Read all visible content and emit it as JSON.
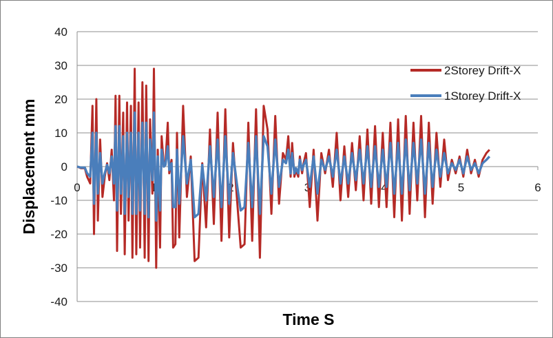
{
  "chart_data": {
    "type": "line",
    "title": "",
    "xlabel": "Time  S",
    "ylabel": "Displacement  mm",
    "xlim": [
      0,
      6
    ],
    "ylim": [
      -40,
      40
    ],
    "xticks": [
      0,
      1,
      2,
      3,
      4,
      5,
      6
    ],
    "yticks": [
      40,
      30,
      20,
      10,
      0,
      -10,
      -20,
      -30,
      -40
    ],
    "grid": "horizontal",
    "legend": "right",
    "series": [
      {
        "name": "2Storey Drift-X",
        "color": "#b52a26",
        "x": [
          0,
          0.05,
          0.1,
          0.13,
          0.17,
          0.2,
          0.22,
          0.25,
          0.27,
          0.3,
          0.33,
          0.36,
          0.39,
          0.42,
          0.45,
          0.48,
          0.5,
          0.52,
          0.55,
          0.57,
          0.6,
          0.62,
          0.65,
          0.67,
          0.7,
          0.72,
          0.75,
          0.77,
          0.8,
          0.82,
          0.85,
          0.88,
          0.9,
          0.93,
          0.95,
          0.98,
          1.0,
          1.03,
          1.05,
          1.08,
          1.1,
          1.13,
          1.15,
          1.18,
          1.2,
          1.23,
          1.25,
          1.28,
          1.3,
          1.33,
          1.38,
          1.43,
          1.48,
          1.53,
          1.58,
          1.63,
          1.68,
          1.73,
          1.78,
          1.83,
          1.88,
          1.93,
          1.98,
          2.03,
          2.08,
          2.13,
          2.18,
          2.23,
          2.28,
          2.33,
          2.38,
          2.43,
          2.48,
          2.53,
          2.58,
          2.63,
          2.68,
          2.72,
          2.75,
          2.78,
          2.8,
          2.83,
          2.85,
          2.88,
          2.9,
          2.93,
          2.95,
          2.98,
          3.03,
          3.08,
          3.13,
          3.18,
          3.23,
          3.28,
          3.33,
          3.38,
          3.43,
          3.48,
          3.53,
          3.58,
          3.63,
          3.68,
          3.73,
          3.78,
          3.83,
          3.88,
          3.93,
          3.98,
          4.03,
          4.08,
          4.13,
          4.18,
          4.23,
          4.28,
          4.33,
          4.38,
          4.43,
          4.48,
          4.53,
          4.58,
          4.63,
          4.68,
          4.73,
          4.78,
          4.83,
          4.88,
          4.93,
          4.98,
          5.03,
          5.08,
          5.13,
          5.18,
          5.23,
          5.28,
          5.33,
          5.37
        ],
        "y": [
          0,
          -0.5,
          -0.5,
          -3,
          -5,
          18,
          -20,
          20,
          -16,
          8,
          -9,
          -3,
          1,
          -4,
          5,
          -10,
          21,
          -25,
          21,
          -14,
          16,
          -26,
          19,
          -16,
          18,
          -27,
          29,
          -26,
          19,
          -24,
          25,
          -27,
          24,
          -28,
          14,
          -8,
          29,
          -30,
          5,
          -24,
          9,
          0,
          1,
          13,
          -2,
          2,
          -24,
          -23,
          10,
          -21,
          18,
          -9,
          3,
          -28,
          -27,
          1,
          -18,
          11,
          -17,
          16,
          -22,
          17,
          -21,
          7,
          -9,
          -24,
          -23,
          13,
          -22,
          17,
          -27,
          18,
          11,
          -14,
          15,
          -11,
          4,
          2,
          9,
          -3,
          7,
          -3,
          -1,
          -3,
          3,
          -2,
          1,
          4,
          -12,
          5,
          -16,
          4,
          -2,
          5,
          -6,
          10,
          -10,
          6,
          -9,
          7,
          -7,
          9,
          -10,
          11,
          -11,
          12,
          -12,
          10,
          -12,
          13,
          -15,
          14,
          -16,
          15,
          -14,
          13,
          -10,
          15,
          -15,
          13,
          -11,
          10,
          -6,
          8,
          -4,
          2,
          -2,
          3,
          -3,
          5,
          -2,
          2,
          -3,
          2,
          4,
          5
        ]
      },
      {
        "name": "1Storey Drift-X",
        "color": "#4a7ebb",
        "x": [
          0,
          0.05,
          0.1,
          0.13,
          0.17,
          0.2,
          0.22,
          0.25,
          0.27,
          0.3,
          0.33,
          0.36,
          0.39,
          0.42,
          0.45,
          0.48,
          0.5,
          0.52,
          0.55,
          0.57,
          0.6,
          0.62,
          0.65,
          0.67,
          0.7,
          0.72,
          0.75,
          0.77,
          0.8,
          0.82,
          0.85,
          0.88,
          0.9,
          0.93,
          0.95,
          0.98,
          1.0,
          1.03,
          1.05,
          1.08,
          1.1,
          1.13,
          1.15,
          1.18,
          1.2,
          1.23,
          1.25,
          1.28,
          1.3,
          1.33,
          1.38,
          1.43,
          1.48,
          1.53,
          1.58,
          1.63,
          1.68,
          1.73,
          1.78,
          1.83,
          1.88,
          1.93,
          1.98,
          2.03,
          2.08,
          2.13,
          2.18,
          2.23,
          2.28,
          2.33,
          2.38,
          2.43,
          2.48,
          2.53,
          2.58,
          2.63,
          2.68,
          2.72,
          2.75,
          2.78,
          2.8,
          2.83,
          2.85,
          2.88,
          2.9,
          2.93,
          2.95,
          2.98,
          3.03,
          3.08,
          3.13,
          3.18,
          3.23,
          3.28,
          3.33,
          3.38,
          3.43,
          3.48,
          3.53,
          3.58,
          3.63,
          3.68,
          3.73,
          3.78,
          3.83,
          3.88,
          3.93,
          3.98,
          4.03,
          4.08,
          4.13,
          4.18,
          4.23,
          4.28,
          4.33,
          4.38,
          4.43,
          4.48,
          4.53,
          4.58,
          4.63,
          4.68,
          4.73,
          4.78,
          4.83,
          4.88,
          4.93,
          4.98,
          5.03,
          5.08,
          5.13,
          5.18,
          5.23,
          5.28,
          5.33,
          5.37
        ],
        "y": [
          0,
          -0.3,
          -0.3,
          -2,
          -3,
          10,
          -11,
          10,
          -8,
          4,
          -5,
          -2,
          0.5,
          -2,
          3,
          -5,
          12,
          -13,
          12,
          -8,
          9,
          -14,
          10,
          -9,
          10,
          -14,
          16,
          -14,
          10,
          -13,
          13,
          -14,
          13,
          -15,
          8,
          -4,
          16,
          -16,
          3,
          -13,
          5,
          0,
          0.5,
          6,
          -1,
          1,
          -12,
          -12,
          5,
          -11,
          9,
          -5,
          2,
          -15,
          -14,
          0.5,
          -10,
          6,
          -9,
          8,
          -12,
          9,
          -11,
          4,
          -5,
          -13,
          -12,
          7,
          -12,
          9,
          -14,
          9,
          6,
          -8,
          8,
          -6,
          2,
          1,
          5,
          -2,
          4,
          -2,
          -0.5,
          -2,
          2,
          -1,
          0.5,
          2,
          -6,
          3,
          -8,
          2,
          -1,
          3,
          -3,
          5,
          -5,
          3,
          -5,
          4,
          -4,
          5,
          -5,
          6,
          -6,
          6,
          -6,
          5,
          -6,
          7,
          -8,
          7,
          -8,
          8,
          -7,
          7,
          -5,
          8,
          -8,
          7,
          -6,
          5,
          -3,
          4,
          -2,
          1,
          -1,
          2,
          -2,
          3,
          -1,
          1,
          -2,
          1,
          2,
          3
        ]
      }
    ]
  }
}
